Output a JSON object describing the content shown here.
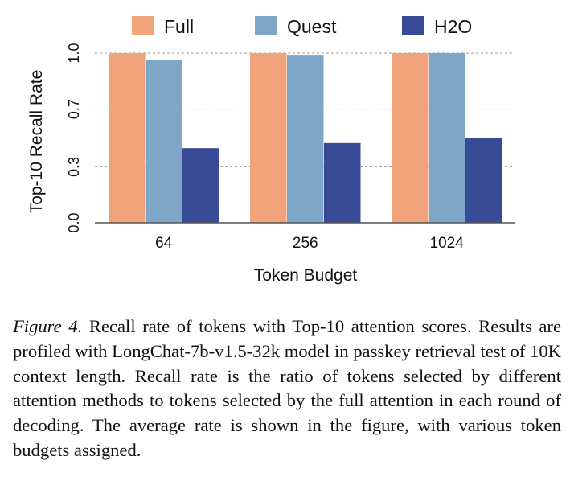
{
  "chart_data": {
    "type": "bar",
    "title": "",
    "xlabel": "Token Budget",
    "ylabel": "Top-10 Recall Rate",
    "categories": [
      "64",
      "256",
      "1024"
    ],
    "series": [
      {
        "name": "Full",
        "color": "#f0a27b",
        "values": [
          1.0,
          1.0,
          1.0
        ]
      },
      {
        "name": "Quest",
        "color": "#7ea6c9",
        "values": [
          0.96,
          0.99,
          1.0
        ]
      },
      {
        "name": "H2O",
        "color": "#394b96",
        "values": [
          0.44,
          0.47,
          0.5
        ]
      }
    ],
    "ylim": [
      0,
      1.0
    ],
    "yticks": [
      {
        "value": 0.0,
        "label": "0.0"
      },
      {
        "value": 0.33,
        "label": "0.3"
      },
      {
        "value": 0.67,
        "label": "0.7"
      },
      {
        "value": 1.0,
        "label": "1.0"
      }
    ],
    "grid": "horizontal dashed",
    "legend_position": "top"
  },
  "caption": {
    "label": "Figure 4.",
    "text": "Recall rate of tokens with Top-10 attention scores. Results are profiled with LongChat-7b-v1.5-32k model in passkey retrieval test of 10K context length. Recall rate is the ratio of tokens selected by different attention methods to tokens selected by the full attention in each round of decoding. The average rate is shown in the figure, with various token budgets assigned."
  }
}
